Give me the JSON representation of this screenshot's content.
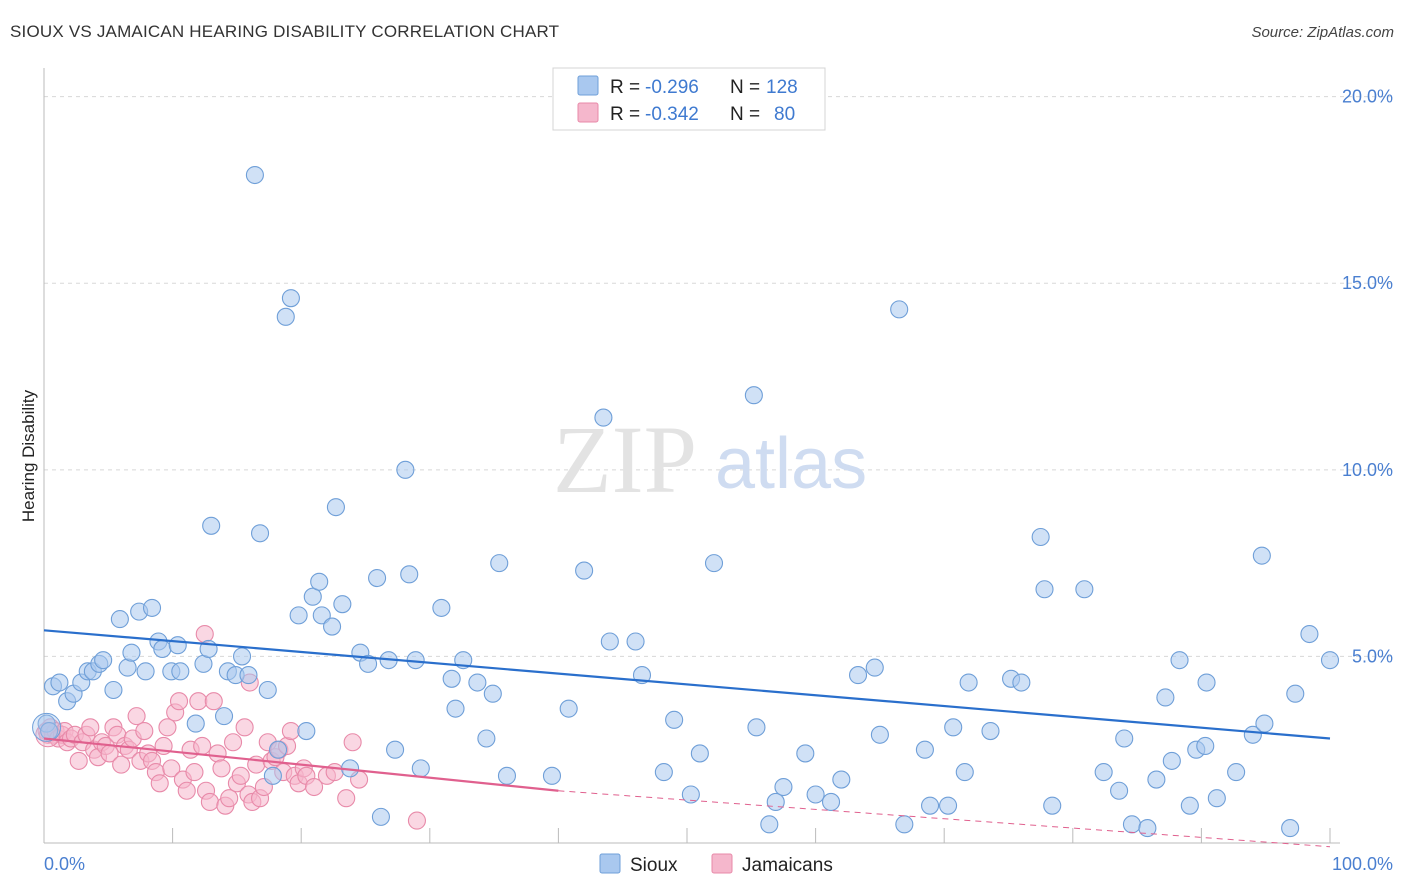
{
  "title": "SIOUX VS JAMAICAN HEARING DISABILITY CORRELATION CHART",
  "source": "Source: ZipAtlas.com",
  "watermark": {
    "zip": "ZIP",
    "atlas": "atlas"
  },
  "legend": {
    "rows": [
      {
        "r_label": "R =",
        "r_value": "-0.296",
        "n_label": "N =",
        "n_value": "128"
      },
      {
        "r_label": "R =",
        "r_value": "-0.342",
        "n_label": "N =",
        "n_value": "80"
      }
    ]
  },
  "bottom_legend": [
    "Sioux",
    "Jamaicans"
  ],
  "colors": {
    "sioux_fill": "#a9c8ef",
    "sioux_stroke": "#6f9fd8",
    "sioux_line": "#2a6fcc",
    "jam_fill": "#f5b7cc",
    "jam_stroke": "#e88aa9",
    "jam_line": "#e0608e",
    "grid": "#d8d8d8",
    "tick_label": "#4a7fd0"
  },
  "chart_data": {
    "type": "scatter",
    "title": "SIOUX VS JAMAICAN HEARING DISABILITY CORRELATION CHART",
    "xlabel": "",
    "ylabel": "Hearing Disability",
    "xlim": [
      0,
      100
    ],
    "ylim": [
      0,
      20.5
    ],
    "x_tick_labels": [
      "0.0%",
      "100.0%"
    ],
    "y_ticks": [
      5,
      10,
      15,
      20
    ],
    "y_tick_labels": [
      "5.0%",
      "10.0%",
      "15.0%",
      "20.0%"
    ],
    "series": [
      {
        "name": "Sioux",
        "R": -0.296,
        "N": 128,
        "trend": {
          "x0": 0,
          "y0": 5.7,
          "x1": 100,
          "y1": 2.8
        },
        "points": [
          [
            0.2,
            3.2
          ],
          [
            0.4,
            3.0
          ],
          [
            0.7,
            4.2
          ],
          [
            1.2,
            4.3
          ],
          [
            1.8,
            3.8
          ],
          [
            2.3,
            4.0
          ],
          [
            2.9,
            4.3
          ],
          [
            3.4,
            4.6
          ],
          [
            3.8,
            4.6
          ],
          [
            4.3,
            4.8
          ],
          [
            4.6,
            4.9
          ],
          [
            5.4,
            4.1
          ],
          [
            5.9,
            6.0
          ],
          [
            6.5,
            4.7
          ],
          [
            6.8,
            5.1
          ],
          [
            7.4,
            6.2
          ],
          [
            7.9,
            4.6
          ],
          [
            8.4,
            6.3
          ],
          [
            8.9,
            5.4
          ],
          [
            9.2,
            5.2
          ],
          [
            9.9,
            4.6
          ],
          [
            10.4,
            5.3
          ],
          [
            10.6,
            4.6
          ],
          [
            11.8,
            3.2
          ],
          [
            12.4,
            4.8
          ],
          [
            12.8,
            5.2
          ],
          [
            13.0,
            8.5
          ],
          [
            14.0,
            3.4
          ],
          [
            14.3,
            4.6
          ],
          [
            14.9,
            4.5
          ],
          [
            15.4,
            5.0
          ],
          [
            15.9,
            4.5
          ],
          [
            16.4,
            17.9
          ],
          [
            16.8,
            8.3
          ],
          [
            17.4,
            4.1
          ],
          [
            17.8,
            1.8
          ],
          [
            18.2,
            2.5
          ],
          [
            18.8,
            14.1
          ],
          [
            19.2,
            14.6
          ],
          [
            19.8,
            6.1
          ],
          [
            20.4,
            3.0
          ],
          [
            20.9,
            6.6
          ],
          [
            21.4,
            7.0
          ],
          [
            21.6,
            6.1
          ],
          [
            22.4,
            5.8
          ],
          [
            22.7,
            9.0
          ],
          [
            23.2,
            6.4
          ],
          [
            23.8,
            2.0
          ],
          [
            24.6,
            5.1
          ],
          [
            25.2,
            4.8
          ],
          [
            25.9,
            7.1
          ],
          [
            26.2,
            0.7
          ],
          [
            26.8,
            4.9
          ],
          [
            27.3,
            2.5
          ],
          [
            28.1,
            10.0
          ],
          [
            28.4,
            7.2
          ],
          [
            28.9,
            4.9
          ],
          [
            29.3,
            2.0
          ],
          [
            30.9,
            6.3
          ],
          [
            31.7,
            4.4
          ],
          [
            32.0,
            3.6
          ],
          [
            32.6,
            4.9
          ],
          [
            33.7,
            4.3
          ],
          [
            34.4,
            2.8
          ],
          [
            34.9,
            4.0
          ],
          [
            35.4,
            7.5
          ],
          [
            36.0,
            1.8
          ],
          [
            39.5,
            1.8
          ],
          [
            40.8,
            3.6
          ],
          [
            42.0,
            7.3
          ],
          [
            43.5,
            11.4
          ],
          [
            44.0,
            5.4
          ],
          [
            46.0,
            5.4
          ],
          [
            46.5,
            4.5
          ],
          [
            48.2,
            1.9
          ],
          [
            49.0,
            3.3
          ],
          [
            50.3,
            1.3
          ],
          [
            51.0,
            2.4
          ],
          [
            52.1,
            7.5
          ],
          [
            55.2,
            12.0
          ],
          [
            55.4,
            3.1
          ],
          [
            56.4,
            0.5
          ],
          [
            56.9,
            1.1
          ],
          [
            57.5,
            1.5
          ],
          [
            59.2,
            2.4
          ],
          [
            60.0,
            1.3
          ],
          [
            61.2,
            1.1
          ],
          [
            62.0,
            1.7
          ],
          [
            63.3,
            4.5
          ],
          [
            64.6,
            4.7
          ],
          [
            65.0,
            2.9
          ],
          [
            66.5,
            14.3
          ],
          [
            66.9,
            0.5
          ],
          [
            68.5,
            2.5
          ],
          [
            68.9,
            1.0
          ],
          [
            70.3,
            1.0
          ],
          [
            70.7,
            3.1
          ],
          [
            71.6,
            1.9
          ],
          [
            71.9,
            4.3
          ],
          [
            73.6,
            3.0
          ],
          [
            75.2,
            4.4
          ],
          [
            76.0,
            4.3
          ],
          [
            77.5,
            8.2
          ],
          [
            77.8,
            6.8
          ],
          [
            78.4,
            1.0
          ],
          [
            80.9,
            6.8
          ],
          [
            82.4,
            1.9
          ],
          [
            83.6,
            1.4
          ],
          [
            84.0,
            2.8
          ],
          [
            84.6,
            0.5
          ],
          [
            85.8,
            0.4
          ],
          [
            86.5,
            1.7
          ],
          [
            87.2,
            3.9
          ],
          [
            87.7,
            2.2
          ],
          [
            88.3,
            4.9
          ],
          [
            89.1,
            1.0
          ],
          [
            89.6,
            2.5
          ],
          [
            90.3,
            2.6
          ],
          [
            90.4,
            4.3
          ],
          [
            91.2,
            1.2
          ],
          [
            92.7,
            1.9
          ],
          [
            94.0,
            2.9
          ],
          [
            94.9,
            3.2
          ],
          [
            94.7,
            7.7
          ],
          [
            96.9,
            0.4
          ],
          [
            97.3,
            4.0
          ],
          [
            98.4,
            5.6
          ],
          [
            100.0,
            4.9
          ]
        ]
      },
      {
        "name": "Jamaicans",
        "R": -0.342,
        "N": 80,
        "trend": {
          "x0": 0,
          "y0": 2.8,
          "x1": 40,
          "y1": 1.4,
          "dash_x1": 100,
          "dash_y1": -0.1
        },
        "points": [
          [
            0.2,
            3.0
          ],
          [
            0.3,
            2.9
          ],
          [
            0.5,
            3.1
          ],
          [
            0.7,
            2.9
          ],
          [
            0.9,
            3.0
          ],
          [
            1.1,
            2.8
          ],
          [
            1.4,
            2.9
          ],
          [
            1.6,
            3.0
          ],
          [
            1.8,
            2.7
          ],
          [
            2.1,
            2.8
          ],
          [
            2.4,
            2.9
          ],
          [
            2.7,
            2.2
          ],
          [
            3.0,
            2.7
          ],
          [
            3.3,
            2.9
          ],
          [
            3.6,
            3.1
          ],
          [
            3.9,
            2.5
          ],
          [
            4.2,
            2.3
          ],
          [
            4.5,
            2.7
          ],
          [
            4.8,
            2.6
          ],
          [
            5.1,
            2.4
          ],
          [
            5.4,
            3.1
          ],
          [
            5.7,
            2.9
          ],
          [
            6.0,
            2.1
          ],
          [
            6.3,
            2.6
          ],
          [
            6.6,
            2.5
          ],
          [
            6.9,
            2.8
          ],
          [
            7.2,
            3.4
          ],
          [
            7.5,
            2.2
          ],
          [
            7.8,
            3.0
          ],
          [
            8.1,
            2.4
          ],
          [
            8.4,
            2.2
          ],
          [
            8.7,
            1.9
          ],
          [
            9.0,
            1.6
          ],
          [
            9.3,
            2.6
          ],
          [
            9.6,
            3.1
          ],
          [
            9.9,
            2.0
          ],
          [
            10.2,
            3.5
          ],
          [
            10.5,
            3.8
          ],
          [
            10.8,
            1.7
          ],
          [
            11.1,
            1.4
          ],
          [
            11.4,
            2.5
          ],
          [
            11.7,
            1.9
          ],
          [
            12.0,
            3.8
          ],
          [
            12.3,
            2.6
          ],
          [
            12.6,
            1.4
          ],
          [
            12.9,
            1.1
          ],
          [
            13.2,
            3.8
          ],
          [
            13.5,
            2.4
          ],
          [
            13.8,
            2.0
          ],
          [
            14.1,
            1.0
          ],
          [
            14.4,
            1.2
          ],
          [
            14.7,
            2.7
          ],
          [
            15.0,
            1.6
          ],
          [
            15.3,
            1.8
          ],
          [
            15.6,
            3.1
          ],
          [
            15.9,
            1.3
          ],
          [
            16.2,
            1.1
          ],
          [
            16.5,
            2.1
          ],
          [
            16.8,
            1.2
          ],
          [
            17.1,
            1.5
          ],
          [
            17.4,
            2.7
          ],
          [
            17.7,
            2.2
          ],
          [
            18.0,
            2.3
          ],
          [
            18.3,
            2.5
          ],
          [
            18.6,
            1.9
          ],
          [
            18.9,
            2.6
          ],
          [
            19.2,
            3.0
          ],
          [
            19.5,
            1.8
          ],
          [
            19.8,
            1.6
          ],
          [
            20.2,
            2.0
          ],
          [
            20.4,
            1.8
          ],
          [
            21.0,
            1.5
          ],
          [
            22.0,
            1.8
          ],
          [
            22.6,
            1.9
          ],
          [
            23.5,
            1.2
          ],
          [
            24.0,
            2.7
          ],
          [
            24.5,
            1.7
          ],
          [
            29.0,
            0.6
          ],
          [
            12.5,
            5.6
          ],
          [
            16.0,
            4.3
          ]
        ]
      }
    ]
  }
}
